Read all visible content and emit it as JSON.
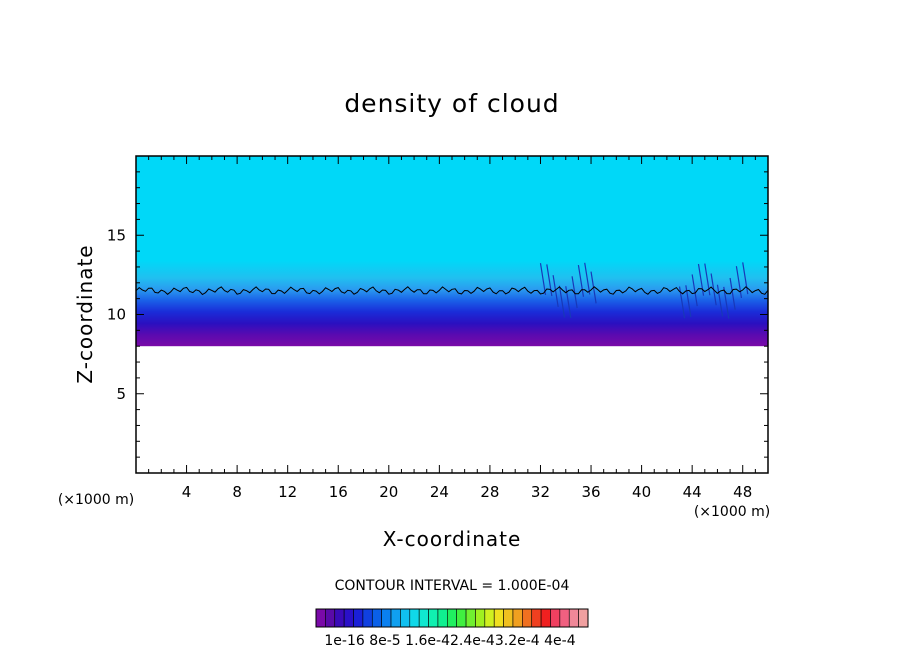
{
  "chart_data": {
    "type": "heatmap",
    "title": "density of cloud",
    "xlabel": "X-coordinate",
    "ylabel": "Z-coordinate",
    "x_unit": "(×1000 m)",
    "z_unit": "(×1000 m)",
    "xlim": [
      0,
      50
    ],
    "ylim": [
      0,
      20
    ],
    "xticks": [
      4,
      8,
      12,
      16,
      20,
      24,
      28,
      32,
      36,
      40,
      44,
      48
    ],
    "yticks": [
      5,
      10,
      15
    ],
    "cloud_base_km": 8,
    "cloud_top_km": 20,
    "contour_line_km": 11.5,
    "contour_interval_text": "CONTOUR INTERVAL = 1.000E-04",
    "colorbar": {
      "colors": [
        "#7a0aa8",
        "#5a0aa8",
        "#3a0ab8",
        "#2a10c8",
        "#1a20d8",
        "#1040e0",
        "#0a60e8",
        "#0a80f0",
        "#10a0f0",
        "#10c0f0",
        "#10d8e8",
        "#10e8d0",
        "#10f0b0",
        "#10f090",
        "#20f060",
        "#40f040",
        "#70f030",
        "#a0f020",
        "#d0f020",
        "#f0e020",
        "#f0c020",
        "#f0a020",
        "#f07020",
        "#f04020",
        "#f02020",
        "#f04060",
        "#f06080",
        "#f08898",
        "#f0a0a0"
      ],
      "labels": [
        "1e-16",
        "8e-5",
        "1.6e-4",
        "2.4e-4",
        "3.2e-4",
        "4e-4"
      ],
      "label_line": "1e-16 8e-5 1.6e-42.4e-43.2e-4 4e-4"
    }
  }
}
